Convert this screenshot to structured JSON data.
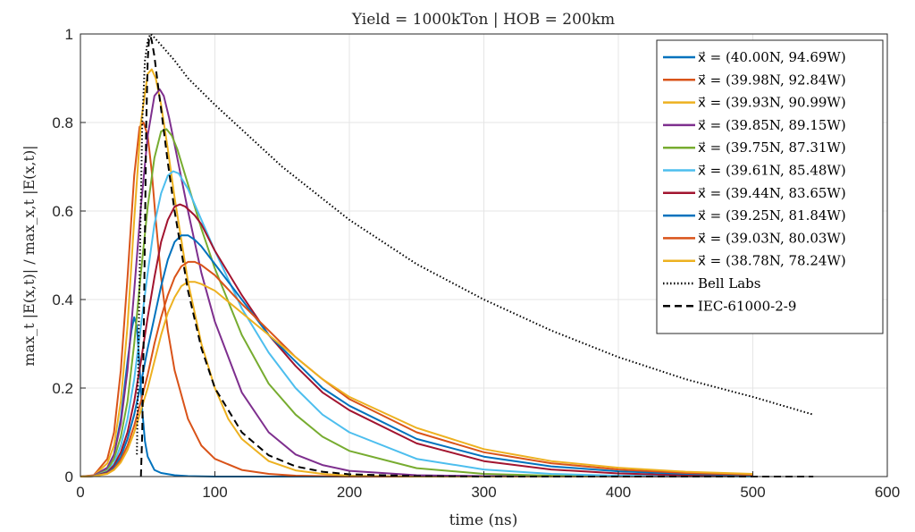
{
  "chart_data": {
    "type": "line",
    "title": "Yield = 1000kTon | HOB = 200km",
    "xlabel": "time (ns)",
    "ylabel": "max_t |E(x,t)| / max_x,t |E(x,t)|",
    "xlim": [
      0,
      600
    ],
    "ylim": [
      0,
      1
    ],
    "xticks": [
      "0",
      "100",
      "200",
      "300",
      "400",
      "500",
      "600"
    ],
    "yticks": [
      "0",
      "0.2",
      "0.4",
      "0.6",
      "0.8",
      "1"
    ],
    "grid": true,
    "legend_position": "top-right",
    "series": [
      {
        "name": "x⃗ = (40.00N, 94.69W)",
        "color": "#0072BD",
        "style": "solid",
        "x": [
          0,
          10,
          20,
          25,
          30,
          35,
          38,
          40,
          42,
          44,
          46,
          48,
          50,
          55,
          60,
          70,
          80,
          100,
          500
        ],
        "y": [
          0,
          0.002,
          0.02,
          0.05,
          0.13,
          0.26,
          0.33,
          0.36,
          0.34,
          0.25,
          0.15,
          0.08,
          0.045,
          0.015,
          0.008,
          0.003,
          0.001,
          0,
          0
        ]
      },
      {
        "name": "x⃗ = (39.98N, 92.84W)",
        "color": "#D95319",
        "style": "solid",
        "x": [
          0,
          10,
          20,
          25,
          30,
          35,
          40,
          44,
          47,
          50,
          53,
          56,
          60,
          65,
          70,
          80,
          90,
          100,
          120,
          140,
          160,
          200,
          500
        ],
        "y": [
          0,
          0.003,
          0.04,
          0.1,
          0.24,
          0.45,
          0.68,
          0.79,
          0.8,
          0.77,
          0.69,
          0.58,
          0.45,
          0.33,
          0.24,
          0.13,
          0.07,
          0.04,
          0.015,
          0.006,
          0.002,
          0,
          0
        ]
      },
      {
        "name": "x⃗ = (39.93N, 90.99W)",
        "color": "#EDB120",
        "style": "solid",
        "x": [
          0,
          10,
          20,
          25,
          30,
          35,
          40,
          45,
          50,
          53,
          56,
          60,
          65,
          70,
          80,
          90,
          100,
          110,
          120,
          140,
          160,
          180,
          200,
          250,
          500
        ],
        "y": [
          0,
          0.002,
          0.03,
          0.07,
          0.17,
          0.34,
          0.58,
          0.8,
          0.91,
          0.92,
          0.9,
          0.84,
          0.74,
          0.63,
          0.44,
          0.3,
          0.2,
          0.13,
          0.085,
          0.035,
          0.014,
          0.006,
          0.002,
          0,
          0
        ]
      },
      {
        "name": "x⃗ = (39.85N, 89.15W)",
        "color": "#7E2F8E",
        "style": "solid",
        "x": [
          0,
          10,
          20,
          25,
          30,
          35,
          40,
          45,
          50,
          55,
          59,
          62,
          66,
          70,
          80,
          90,
          100,
          120,
          140,
          160,
          180,
          200,
          250,
          300,
          500
        ],
        "y": [
          0,
          0.002,
          0.02,
          0.05,
          0.12,
          0.24,
          0.42,
          0.61,
          0.77,
          0.86,
          0.875,
          0.86,
          0.81,
          0.75,
          0.6,
          0.46,
          0.35,
          0.19,
          0.1,
          0.05,
          0.026,
          0.013,
          0.003,
          0.001,
          0
        ]
      },
      {
        "name": "x⃗ = (39.75N, 87.31W)",
        "color": "#77AC30",
        "style": "solid",
        "x": [
          0,
          10,
          20,
          25,
          30,
          35,
          40,
          45,
          50,
          55,
          60,
          64,
          68,
          72,
          80,
          90,
          100,
          120,
          140,
          160,
          180,
          200,
          250,
          300,
          350,
          500
        ],
        "y": [
          0,
          0.001,
          0.015,
          0.04,
          0.09,
          0.17,
          0.3,
          0.46,
          0.61,
          0.72,
          0.78,
          0.785,
          0.77,
          0.74,
          0.66,
          0.56,
          0.47,
          0.32,
          0.21,
          0.14,
          0.09,
          0.058,
          0.019,
          0.006,
          0.002,
          0
        ]
      },
      {
        "name": "x⃗ = (39.61N, 85.48W)",
        "color": "#4DBEEE",
        "style": "solid",
        "x": [
          0,
          10,
          20,
          25,
          30,
          35,
          40,
          45,
          50,
          55,
          60,
          65,
          69,
          73,
          80,
          90,
          100,
          120,
          140,
          160,
          180,
          200,
          250,
          300,
          350,
          400,
          500
        ],
        "y": [
          0,
          0.001,
          0.012,
          0.03,
          0.07,
          0.13,
          0.22,
          0.34,
          0.46,
          0.57,
          0.64,
          0.68,
          0.69,
          0.685,
          0.65,
          0.58,
          0.51,
          0.38,
          0.28,
          0.2,
          0.14,
          0.1,
          0.04,
          0.016,
          0.006,
          0.002,
          0
        ]
      },
      {
        "name": "x⃗ = (39.44N, 83.65W)",
        "color": "#A2142F",
        "style": "solid",
        "x": [
          0,
          10,
          20,
          25,
          30,
          35,
          40,
          45,
          50,
          55,
          60,
          65,
          70,
          74,
          78,
          85,
          90,
          100,
          120,
          140,
          160,
          180,
          200,
          250,
          300,
          350,
          400,
          450,
          500
        ],
        "y": [
          0,
          0.001,
          0.01,
          0.025,
          0.055,
          0.1,
          0.17,
          0.26,
          0.36,
          0.45,
          0.53,
          0.58,
          0.61,
          0.615,
          0.61,
          0.59,
          0.57,
          0.51,
          0.41,
          0.32,
          0.25,
          0.19,
          0.15,
          0.075,
          0.035,
          0.016,
          0.007,
          0.003,
          0.001
        ]
      },
      {
        "name": "x⃗ = (39.25N, 81.84W)",
        "color": "#0072BD",
        "style": "solid",
        "x": [
          0,
          10,
          20,
          25,
          30,
          35,
          40,
          45,
          50,
          55,
          60,
          65,
          70,
          75,
          80,
          85,
          90,
          100,
          120,
          140,
          160,
          180,
          200,
          250,
          300,
          350,
          400,
          450,
          500
        ],
        "y": [
          0,
          0.001,
          0.008,
          0.02,
          0.045,
          0.085,
          0.14,
          0.21,
          0.29,
          0.36,
          0.43,
          0.49,
          0.53,
          0.545,
          0.545,
          0.535,
          0.52,
          0.48,
          0.4,
          0.32,
          0.26,
          0.2,
          0.16,
          0.085,
          0.045,
          0.023,
          0.012,
          0.006,
          0.003
        ]
      },
      {
        "name": "x⃗ = (39.03N, 80.03W)",
        "color": "#D95319",
        "style": "solid",
        "x": [
          0,
          10,
          20,
          25,
          30,
          35,
          40,
          45,
          50,
          55,
          60,
          65,
          70,
          75,
          80,
          85,
          90,
          100,
          120,
          140,
          160,
          180,
          200,
          250,
          300,
          350,
          400,
          450,
          500
        ],
        "y": [
          0,
          0.001,
          0.007,
          0.017,
          0.038,
          0.07,
          0.115,
          0.17,
          0.23,
          0.3,
          0.36,
          0.41,
          0.45,
          0.475,
          0.485,
          0.485,
          0.478,
          0.455,
          0.39,
          0.33,
          0.27,
          0.22,
          0.175,
          0.1,
          0.055,
          0.03,
          0.016,
          0.008,
          0.004
        ]
      },
      {
        "name": "x⃗ = (38.78N, 78.24W)",
        "color": "#EDB120",
        "style": "solid",
        "x": [
          0,
          10,
          20,
          25,
          30,
          35,
          40,
          45,
          50,
          55,
          60,
          65,
          70,
          75,
          80,
          85,
          90,
          100,
          120,
          140,
          160,
          180,
          200,
          250,
          300,
          350,
          400,
          450,
          500
        ],
        "y": [
          0,
          0.001,
          0.006,
          0.015,
          0.032,
          0.06,
          0.1,
          0.15,
          0.2,
          0.26,
          0.32,
          0.37,
          0.405,
          0.43,
          0.44,
          0.44,
          0.435,
          0.42,
          0.37,
          0.32,
          0.27,
          0.22,
          0.18,
          0.11,
          0.062,
          0.035,
          0.02,
          0.011,
          0.006
        ]
      },
      {
        "name": "Bell Labs",
        "color": "#000000",
        "style": "dotted",
        "x": [
          42,
          44,
          46,
          48,
          50,
          52,
          54,
          57,
          60,
          70,
          80,
          100,
          150,
          200,
          250,
          300,
          350,
          400,
          450,
          500,
          545
        ],
        "y": [
          0.05,
          0.45,
          0.8,
          0.94,
          0.985,
          1.0,
          0.995,
          0.985,
          0.975,
          0.94,
          0.9,
          0.84,
          0.7,
          0.58,
          0.48,
          0.4,
          0.33,
          0.27,
          0.22,
          0.18,
          0.14
        ]
      },
      {
        "name": "IEC-61000-2-9",
        "color": "#000000",
        "style": "dashed",
        "x": [
          45,
          46,
          47,
          48,
          49,
          50,
          51,
          52,
          53,
          55,
          57,
          60,
          65,
          70,
          80,
          90,
          100,
          120,
          140,
          160,
          180,
          200,
          250,
          300,
          400,
          545
        ],
        "y": [
          0,
          0.1,
          0.3,
          0.55,
          0.8,
          0.94,
          0.99,
          0.995,
          0.985,
          0.95,
          0.9,
          0.83,
          0.71,
          0.6,
          0.42,
          0.29,
          0.2,
          0.1,
          0.048,
          0.023,
          0.011,
          0.005,
          0.001,
          0,
          0,
          0
        ]
      }
    ]
  }
}
